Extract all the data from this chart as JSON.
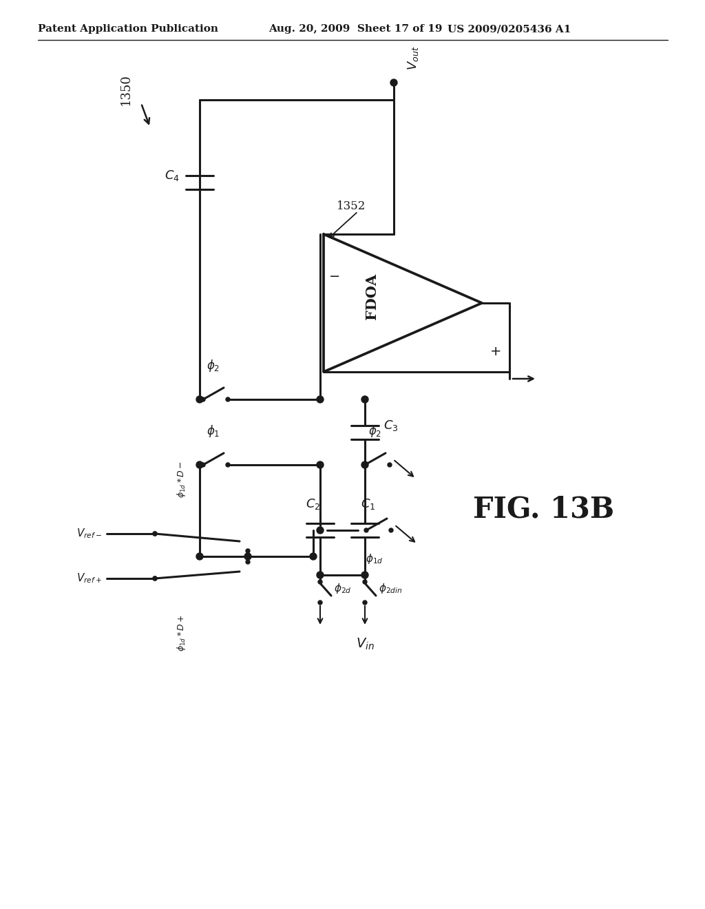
{
  "header_left": "Patent Application Publication",
  "header_mid": "Aug. 20, 2009  Sheet 17 of 19",
  "header_right": "US 2009/0205436 A1",
  "fig_label_num": "1350",
  "amp_ref": "1352",
  "fig_caption": "FIG. 13B",
  "bg_color": "#ffffff",
  "line_color": "#1a1a1a",
  "linewidth": 2.2
}
